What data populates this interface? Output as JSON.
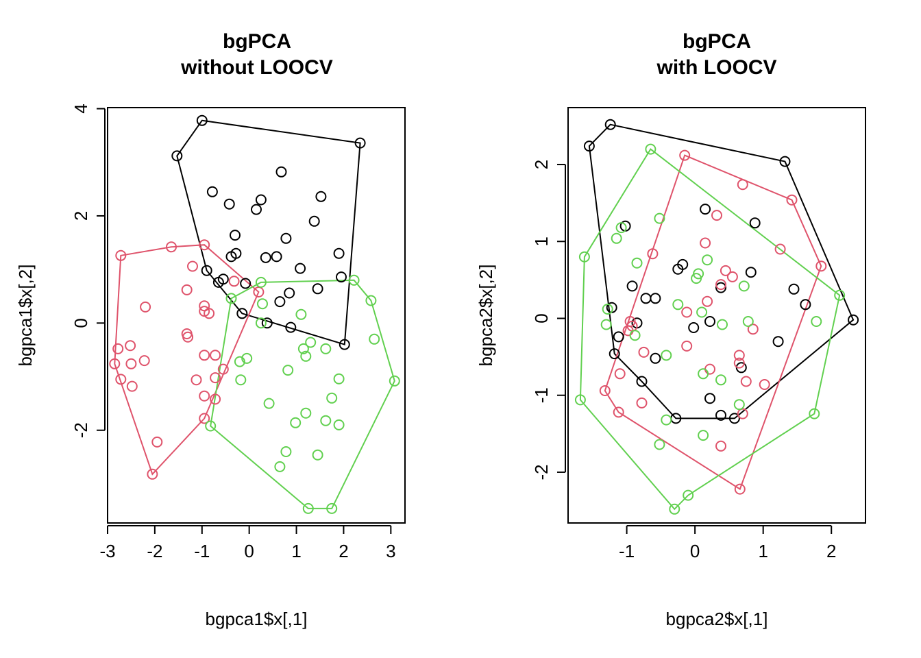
{
  "colors": {
    "g1": "#000000",
    "g2": "#DF536B",
    "g3": "#61D04F"
  },
  "chart_data": [
    {
      "type": "scatter",
      "title": "bgPCA",
      "subtitle": "without LOOCV",
      "xlabel": "bgpca1$x[,1]",
      "ylabel": "bgpca1$x[,2]",
      "xlim": [
        -3.0,
        3.3
      ],
      "ylim": [
        -3.73,
        4.02
      ],
      "xticks": [
        "-3",
        "-2",
        "-1",
        "0",
        "1",
        "2",
        "3"
      ],
      "xtick_values": [
        -3,
        -2,
        -1,
        0,
        1,
        2,
        3
      ],
      "yticks": [
        "-2",
        "0",
        "2",
        "4"
      ],
      "ytick_values": [
        -2,
        0,
        2,
        4
      ],
      "grid": false,
      "series": [
        {
          "color": "#000000",
          "points": [
            [
              -1.0,
              3.78
            ],
            [
              2.35,
              3.36
            ],
            [
              -1.53,
              3.12
            ],
            [
              -0.78,
              2.45
            ],
            [
              -0.42,
              2.22
            ],
            [
              0.25,
              2.3
            ],
            [
              0.15,
              2.12
            ],
            [
              0.68,
              2.82
            ],
            [
              1.52,
              2.36
            ],
            [
              1.38,
              1.9
            ],
            [
              -0.3,
              1.64
            ],
            [
              0.78,
              1.58
            ],
            [
              -0.28,
              1.3
            ],
            [
              -0.38,
              1.24
            ],
            [
              0.35,
              1.22
            ],
            [
              0.58,
              1.24
            ],
            [
              1.9,
              1.3
            ],
            [
              1.08,
              1.02
            ],
            [
              -0.9,
              0.98
            ],
            [
              1.95,
              0.86
            ],
            [
              -0.55,
              0.82
            ],
            [
              -0.65,
              0.76
            ],
            [
              -0.08,
              0.74
            ],
            [
              0.85,
              0.56
            ],
            [
              1.45,
              0.64
            ],
            [
              0.65,
              0.4
            ],
            [
              -0.15,
              0.18
            ],
            [
              0.38,
              0.0
            ],
            [
              0.88,
              -0.08
            ],
            [
              2.02,
              -0.4
            ]
          ],
          "hull": [
            [
              -1.0,
              3.78
            ],
            [
              2.35,
              3.36
            ],
            [
              2.02,
              -0.4
            ],
            [
              -0.15,
              0.18
            ],
            [
              -0.9,
              0.98
            ],
            [
              -1.53,
              3.12
            ]
          ]
        },
        {
          "color": "#DF536B",
          "points": [
            [
              -2.72,
              1.26
            ],
            [
              -1.65,
              1.42
            ],
            [
              -0.95,
              1.46
            ],
            [
              -1.2,
              1.06
            ],
            [
              -0.32,
              0.78
            ],
            [
              -1.32,
              0.62
            ],
            [
              0.2,
              0.58
            ],
            [
              -0.95,
              0.32
            ],
            [
              -2.2,
              0.3
            ],
            [
              -0.95,
              0.22
            ],
            [
              -0.85,
              0.18
            ],
            [
              -2.52,
              -0.42
            ],
            [
              -1.32,
              -0.2
            ],
            [
              -1.3,
              -0.26
            ],
            [
              -2.78,
              -0.48
            ],
            [
              -2.85,
              -0.76
            ],
            [
              -2.5,
              -0.76
            ],
            [
              -2.22,
              -0.7
            ],
            [
              -0.95,
              -0.6
            ],
            [
              -0.72,
              -0.6
            ],
            [
              -0.55,
              -0.86
            ],
            [
              -0.72,
              -1.02
            ],
            [
              -2.72,
              -1.05
            ],
            [
              -1.12,
              -1.06
            ],
            [
              -2.48,
              -1.18
            ],
            [
              -0.95,
              -1.36
            ],
            [
              -0.72,
              -1.42
            ],
            [
              -0.95,
              -1.78
            ],
            [
              -1.95,
              -2.22
            ],
            [
              -2.05,
              -2.82
            ]
          ],
          "hull": [
            [
              -2.72,
              1.26
            ],
            [
              -1.65,
              1.42
            ],
            [
              -0.95,
              1.46
            ],
            [
              0.2,
              0.58
            ],
            [
              -0.95,
              -1.78
            ],
            [
              -2.05,
              -2.82
            ],
            [
              -2.85,
              -0.76
            ]
          ]
        },
        {
          "color": "#61D04F",
          "points": [
            [
              2.22,
              0.8
            ],
            [
              0.25,
              0.76
            ],
            [
              -0.38,
              0.46
            ],
            [
              2.58,
              0.42
            ],
            [
              0.28,
              0.36
            ],
            [
              2.65,
              -0.3
            ],
            [
              1.1,
              0.16
            ],
            [
              0.25,
              0.0
            ],
            [
              1.3,
              -0.36
            ],
            [
              1.15,
              -0.48
            ],
            [
              1.62,
              -0.48
            ],
            [
              1.2,
              -0.62
            ],
            [
              -0.2,
              -0.72
            ],
            [
              -0.05,
              -0.66
            ],
            [
              0.82,
              -0.88
            ],
            [
              1.9,
              -1.04
            ],
            [
              -0.18,
              -1.06
            ],
            [
              3.08,
              -1.08
            ],
            [
              1.75,
              -1.4
            ],
            [
              0.42,
              -1.5
            ],
            [
              1.2,
              -1.68
            ],
            [
              1.62,
              -1.82
            ],
            [
              0.98,
              -1.86
            ],
            [
              1.9,
              -1.9
            ],
            [
              -0.82,
              -1.92
            ],
            [
              0.78,
              -2.4
            ],
            [
              1.45,
              -2.46
            ],
            [
              0.65,
              -2.68
            ],
            [
              1.25,
              -3.46
            ],
            [
              1.75,
              -3.46
            ]
          ],
          "hull": [
            [
              2.22,
              0.8
            ],
            [
              0.25,
              0.76
            ],
            [
              -0.38,
              0.46
            ],
            [
              -0.82,
              -1.92
            ],
            [
              1.25,
              -3.46
            ],
            [
              1.75,
              -3.46
            ],
            [
              3.08,
              -1.08
            ],
            [
              2.58,
              0.42
            ]
          ]
        }
      ]
    },
    {
      "type": "scatter",
      "title": "bgPCA",
      "subtitle": "with LOOCV",
      "xlabel": "bgpca2$x[,1]",
      "ylabel": "bgpca2$x[,2]",
      "xlim": [
        -1.86,
        2.5
      ],
      "ylim": [
        -2.66,
        2.74
      ],
      "xticks": [
        "-1",
        "0",
        "1",
        "2"
      ],
      "xtick_values": [
        -1,
        0,
        1,
        2
      ],
      "yticks": [
        "-2",
        "-1",
        "0",
        "1",
        "2"
      ],
      "ytick_values": [
        -2,
        -1,
        0,
        1,
        2
      ],
      "grid": false,
      "series": [
        {
          "color": "#000000",
          "points": [
            [
              -1.24,
              2.52
            ],
            [
              -1.55,
              2.24
            ],
            [
              1.32,
              2.04
            ],
            [
              -1.02,
              1.2
            ],
            [
              0.15,
              1.42
            ],
            [
              0.88,
              1.24
            ],
            [
              -0.18,
              0.7
            ],
            [
              -0.25,
              0.64
            ],
            [
              0.82,
              0.6
            ],
            [
              -0.92,
              0.42
            ],
            [
              0.38,
              0.4
            ],
            [
              1.45,
              0.38
            ],
            [
              -0.72,
              0.26
            ],
            [
              -0.58,
              0.26
            ],
            [
              1.62,
              0.18
            ],
            [
              -1.22,
              0.14
            ],
            [
              2.32,
              -0.02
            ],
            [
              0.22,
              -0.04
            ],
            [
              -0.85,
              -0.06
            ],
            [
              -0.02,
              -0.12
            ],
            [
              -1.12,
              -0.24
            ],
            [
              1.22,
              -0.3
            ],
            [
              -1.18,
              -0.46
            ],
            [
              -0.58,
              -0.52
            ],
            [
              0.68,
              -0.64
            ],
            [
              -0.78,
              -0.82
            ],
            [
              0.22,
              -1.04
            ],
            [
              0.38,
              -1.26
            ],
            [
              -0.28,
              -1.3
            ],
            [
              0.58,
              -1.3
            ]
          ],
          "hull": [
            [
              -1.24,
              2.52
            ],
            [
              1.32,
              2.04
            ],
            [
              2.32,
              -0.02
            ],
            [
              0.58,
              -1.3
            ],
            [
              -0.28,
              -1.3
            ],
            [
              -0.78,
              -0.82
            ],
            [
              -1.18,
              -0.46
            ],
            [
              -1.55,
              2.24
            ]
          ]
        },
        {
          "color": "#DF536B",
          "points": [
            [
              -0.15,
              2.12
            ],
            [
              0.7,
              1.74
            ],
            [
              1.42,
              1.54
            ],
            [
              0.32,
              1.34
            ],
            [
              0.15,
              0.98
            ],
            [
              1.25,
              0.9
            ],
            [
              -0.62,
              0.84
            ],
            [
              1.85,
              0.68
            ],
            [
              0.45,
              0.62
            ],
            [
              0.38,
              0.44
            ],
            [
              0.55,
              0.54
            ],
            [
              0.18,
              0.22
            ],
            [
              -0.12,
              0.08
            ],
            [
              -0.95,
              -0.04
            ],
            [
              -0.92,
              -0.1
            ],
            [
              -0.98,
              -0.16
            ],
            [
              0.85,
              -0.14
            ],
            [
              -0.75,
              -0.44
            ],
            [
              -0.12,
              -0.36
            ],
            [
              0.65,
              -0.48
            ],
            [
              0.65,
              -0.58
            ],
            [
              0.22,
              -0.66
            ],
            [
              -1.1,
              -0.72
            ],
            [
              0.75,
              -0.82
            ],
            [
              1.02,
              -0.86
            ],
            [
              -1.32,
              -0.94
            ],
            [
              -0.78,
              -1.1
            ],
            [
              -1.12,
              -1.22
            ],
            [
              0.7,
              -1.24
            ],
            [
              0.38,
              -1.66
            ],
            [
              0.66,
              -2.22
            ]
          ],
          "hull": [
            [
              -0.15,
              2.12
            ],
            [
              1.42,
              1.54
            ],
            [
              1.85,
              0.68
            ],
            [
              0.66,
              -2.22
            ],
            [
              -1.12,
              -1.22
            ],
            [
              -1.32,
              -0.94
            ]
          ]
        },
        {
          "color": "#61D04F",
          "points": [
            [
              -0.65,
              2.2
            ],
            [
              -0.52,
              1.3
            ],
            [
              -1.08,
              1.18
            ],
            [
              -1.15,
              1.04
            ],
            [
              -1.62,
              0.8
            ],
            [
              -0.85,
              0.72
            ],
            [
              0.18,
              0.76
            ],
            [
              0.05,
              0.58
            ],
            [
              0.02,
              0.52
            ],
            [
              0.72,
              0.42
            ],
            [
              2.12,
              0.3
            ],
            [
              -0.25,
              0.18
            ],
            [
              -1.28,
              0.12
            ],
            [
              0.1,
              0.08
            ],
            [
              -1.3,
              -0.08
            ],
            [
              0.4,
              -0.08
            ],
            [
              0.78,
              -0.04
            ],
            [
              1.78,
              -0.04
            ],
            [
              -0.88,
              -0.22
            ],
            [
              -0.42,
              -0.48
            ],
            [
              0.12,
              -0.72
            ],
            [
              0.38,
              -0.8
            ],
            [
              -1.68,
              -1.06
            ],
            [
              0.65,
              -1.12
            ],
            [
              -0.42,
              -1.32
            ],
            [
              1.75,
              -1.24
            ],
            [
              0.12,
              -1.52
            ],
            [
              -0.52,
              -1.64
            ],
            [
              -0.1,
              -2.3
            ],
            [
              -0.3,
              -2.48
            ]
          ],
          "hull": [
            [
              -0.65,
              2.2
            ],
            [
              2.12,
              0.3
            ],
            [
              1.75,
              -1.24
            ],
            [
              -0.1,
              -2.3
            ],
            [
              -0.3,
              -2.48
            ],
            [
              -1.68,
              -1.06
            ],
            [
              -1.62,
              0.8
            ]
          ]
        }
      ]
    }
  ]
}
